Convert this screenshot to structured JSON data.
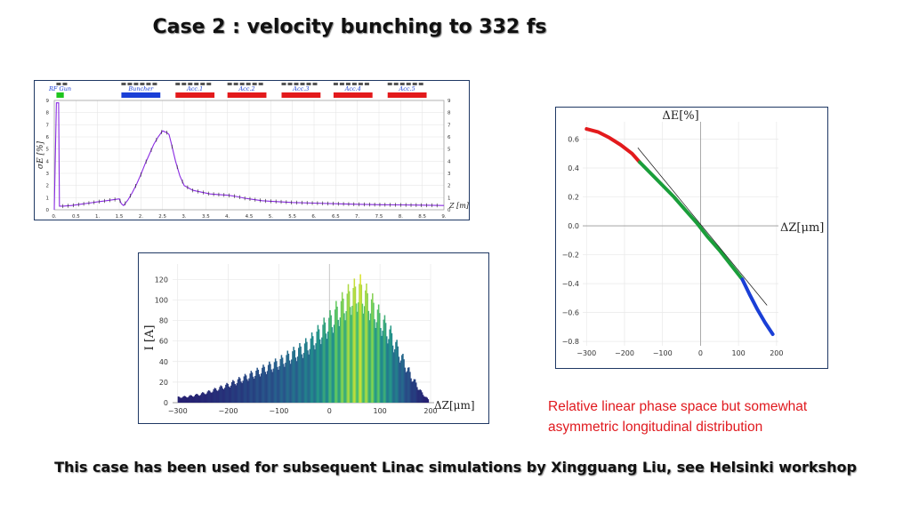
{
  "title": "Case 2 : velocity bunching to 332 fs",
  "note_line1": "Relative linear phase space but somewhat",
  "note_line2": "asymmetric longitudinal distribution",
  "footer": "This case has been used for subsequent Linac simulations by Xingguang Liu, see Helsinki workshop",
  "colors": {
    "red": "#e31a1c",
    "green": "#1ec51e",
    "blue": "#1a3fd6",
    "purple": "#8a2be2",
    "panel_border": "#1f3864"
  },
  "chart_data": [
    {
      "type": "line",
      "xlabel": "Z [m]",
      "ylabel": "σE [%]",
      "xlim": [
        0,
        9
      ],
      "ylim": [
        0,
        9
      ],
      "x_ticks": [
        "0.",
        "0.5",
        "1.",
        "1.5",
        "2.",
        "2.5",
        "3.",
        "3.5",
        "4.",
        "4.5",
        "5.",
        "5.5",
        "6.",
        "6.5",
        "7.",
        "7.5",
        "8.",
        "8.5",
        "9."
      ],
      "y_ticks": [
        "0",
        "1",
        "2",
        "3",
        "4",
        "5",
        "6",
        "7",
        "8",
        "9"
      ],
      "elements": [
        {
          "name": "RF Gun",
          "start": 0.05,
          "end": 0.22,
          "color": "#1ec51e"
        },
        {
          "name": "Buncher",
          "start": 1.55,
          "end": 2.45,
          "color": "#1a3fd6"
        },
        {
          "name": "Acc.1",
          "start": 2.8,
          "end": 3.7,
          "color": "#e31a1c"
        },
        {
          "name": "Acc.2",
          "start": 4.0,
          "end": 4.9,
          "color": "#e31a1c"
        },
        {
          "name": "Acc.3",
          "start": 5.25,
          "end": 6.15,
          "color": "#e31a1c"
        },
        {
          "name": "Acc.4",
          "start": 6.45,
          "end": 7.35,
          "color": "#e31a1c"
        },
        {
          "name": "Acc.5",
          "start": 7.7,
          "end": 8.6,
          "color": "#e31a1c"
        }
      ],
      "series": [
        {
          "x": [
            0,
            0.05,
            0.1,
            0.12,
            0.2,
            0.4,
            0.6,
            0.8,
            1.0,
            1.2,
            1.4,
            1.5,
            1.55,
            1.6,
            1.7,
            1.8,
            1.9,
            2.0,
            2.1,
            2.2,
            2.3,
            2.4,
            2.5,
            2.6,
            2.65,
            2.7,
            2.8,
            2.9,
            3.0,
            3.2,
            3.4,
            3.6,
            3.8,
            4.0,
            4.2,
            4.4,
            4.6,
            4.8,
            5.0,
            5.5,
            6.0,
            6.5,
            7.0,
            7.5,
            8.0,
            8.5,
            9.0
          ],
          "y": [
            0,
            8.8,
            8.8,
            0.3,
            0.3,
            0.35,
            0.45,
            0.55,
            0.65,
            0.75,
            0.85,
            0.9,
            0.5,
            0.35,
            0.8,
            1.4,
            2.1,
            2.9,
            3.8,
            4.6,
            5.4,
            6.0,
            6.5,
            6.35,
            6.2,
            5.5,
            4.0,
            2.8,
            2.0,
            1.6,
            1.45,
            1.3,
            1.25,
            1.2,
            1.1,
            0.95,
            0.85,
            0.75,
            0.7,
            0.6,
            0.55,
            0.5,
            0.45,
            0.42,
            0.4,
            0.38,
            0.35
          ]
        }
      ]
    },
    {
      "type": "area",
      "xlabel": "ΔZ[μm]",
      "ylabel": "I [A]",
      "xlim": [
        -310,
        200
      ],
      "ylim": [
        0,
        135
      ],
      "x_ticks": [
        "−300",
        "−200",
        "−100",
        "0",
        "100",
        "200"
      ],
      "y_ticks": [
        "0",
        "20",
        "40",
        "60",
        "80",
        "100",
        "120"
      ],
      "envelope": {
        "x": [
          -300,
          -280,
          -260,
          -240,
          -220,
          -200,
          -180,
          -160,
          -140,
          -120,
          -100,
          -80,
          -60,
          -40,
          -20,
          0,
          20,
          40,
          60,
          80,
          100,
          120,
          140,
          160,
          180,
          195
        ],
        "y": [
          6,
          7,
          9,
          12,
          16,
          20,
          25,
          30,
          35,
          40,
          45,
          52,
          58,
          66,
          78,
          90,
          105,
          118,
          125,
          110,
          92,
          75,
          52,
          30,
          12,
          3
        ]
      },
      "ripple_period": 12
    },
    {
      "type": "scatter",
      "xlabel": "ΔZ[μm]",
      "title": "ΔE[%]",
      "xlim": [
        -310,
        205
      ],
      "ylim": [
        -0.83,
        0.72
      ],
      "x_ticks": [
        "−300",
        "−200",
        "−100",
        "0",
        "100",
        "200"
      ],
      "y_ticks": [
        "0.6",
        "0.4",
        "0.2",
        "0.0",
        "−0.2",
        "−0.4",
        "−0.6",
        "−0.8"
      ],
      "segments": [
        {
          "color": "#e31a1c",
          "x": [
            -300,
            -270,
            -240,
            -210,
            -180,
            -160
          ],
          "y": [
            0.67,
            0.65,
            0.61,
            0.56,
            0.5,
            0.44
          ]
        },
        {
          "color": "#1a9e3a",
          "x": [
            -160,
            -130,
            -100,
            -70,
            -40,
            -10,
            20,
            50,
            80,
            110
          ],
          "y": [
            0.44,
            0.36,
            0.28,
            0.2,
            0.11,
            0.02,
            -0.08,
            -0.17,
            -0.27,
            -0.37
          ]
        },
        {
          "color": "#1a3fd6",
          "x": [
            110,
            130,
            150,
            170,
            190
          ],
          "y": [
            -0.37,
            -0.48,
            -0.58,
            -0.67,
            -0.75
          ]
        }
      ],
      "fit_line": {
        "x": [
          -165,
          175
        ],
        "y": [
          0.54,
          -0.55
        ]
      }
    }
  ]
}
